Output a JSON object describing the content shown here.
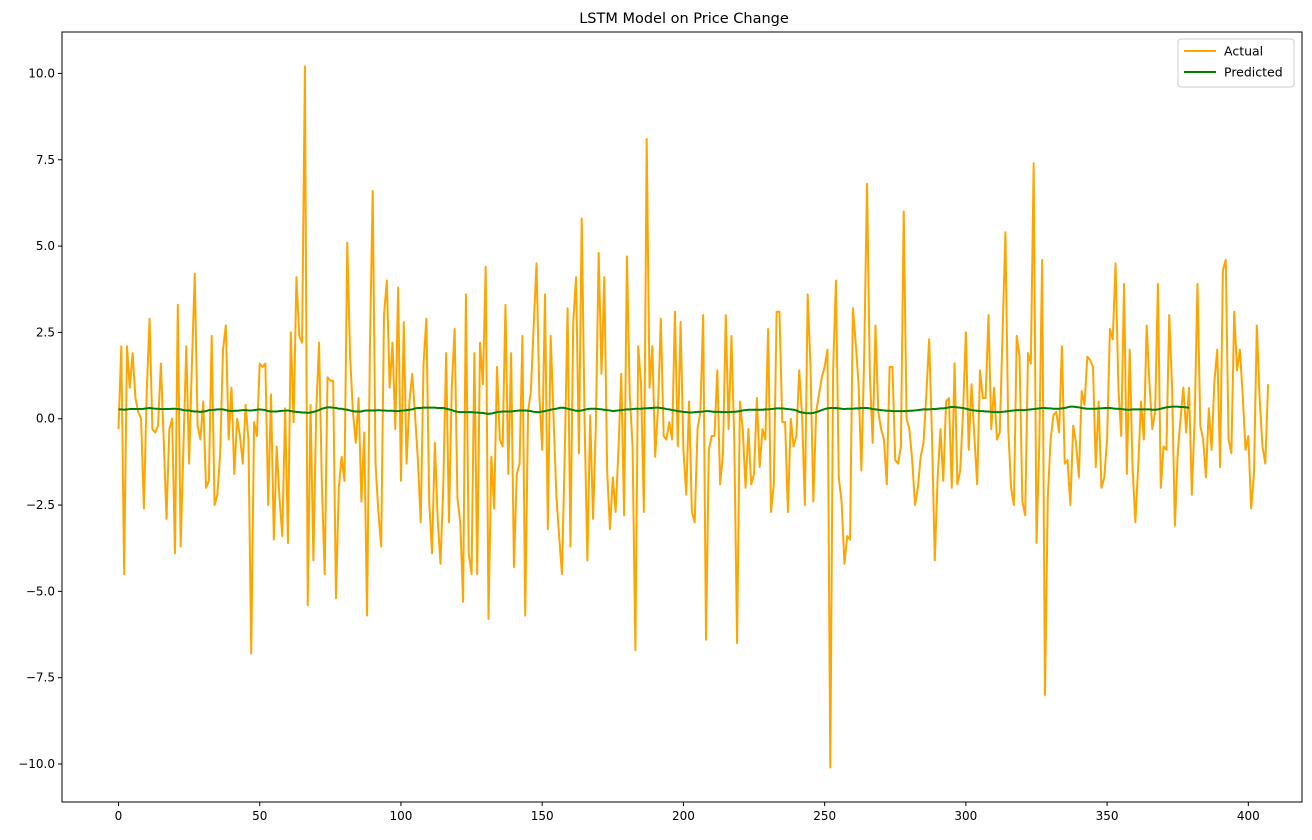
{
  "chart_data": {
    "type": "line",
    "title": "LSTM Model on Price Change",
    "xlabel": "",
    "ylabel": "",
    "xlim": [
      -20,
      419
    ],
    "ylim": [
      -11.1,
      11.2
    ],
    "xticks": [
      0,
      50,
      100,
      150,
      200,
      250,
      300,
      350,
      400
    ],
    "xtick_labels": [
      "0",
      "50",
      "100",
      "150",
      "200",
      "250",
      "300",
      "350",
      "400"
    ],
    "yticks": [
      10.0,
      7.5,
      5.0,
      2.5,
      0.0,
      -2.5,
      -5.0,
      -7.5,
      -10.0
    ],
    "ytick_labels": [
      "10.0",
      "7.5",
      "5.0",
      "2.5",
      "0.0",
      "−2.5",
      "−5.0",
      "−7.5",
      "−10.0"
    ],
    "grid": false,
    "legend_position": "top-right",
    "series": [
      {
        "name": "Actual",
        "color": "#FFA500",
        "values": [
          -0.3,
          2.1,
          -4.5,
          2.1,
          0.9,
          1.9,
          0.6,
          0.2,
          0.0,
          -2.6,
          0.8,
          2.9,
          -0.3,
          -0.4,
          -0.2,
          1.6,
          -0.6,
          -2.9,
          -0.3,
          0.0,
          -3.9,
          3.3,
          -3.7,
          -0.8,
          2.1,
          -1.3,
          1.6,
          4.2,
          -0.2,
          -0.6,
          0.5,
          -2.0,
          -1.8,
          2.4,
          -2.5,
          -2.2,
          -1.0,
          2.0,
          2.7,
          -0.6,
          0.9,
          -1.6,
          0.0,
          -0.5,
          -1.3,
          0.4,
          -0.6,
          -6.8,
          -0.1,
          -0.5,
          1.6,
          1.5,
          1.6,
          -2.5,
          0.7,
          -3.5,
          -0.8,
          -2.3,
          -3.4,
          0.3,
          -3.6,
          2.5,
          -0.1,
          4.1,
          2.4,
          2.2,
          10.2,
          -5.4,
          0.4,
          -4.1,
          0.2,
          2.2,
          -1.9,
          -4.5,
          1.2,
          1.1,
          1.1,
          -5.2,
          -2.0,
          -1.1,
          -1.8,
          5.1,
          1.8,
          0.2,
          -0.7,
          0.6,
          -2.4,
          -0.4,
          -5.7,
          2.0,
          6.6,
          -1.3,
          -2.7,
          -3.7,
          3.0,
          4.0,
          0.9,
          2.2,
          -0.3,
          3.8,
          -1.8,
          2.8,
          -1.3,
          0.5,
          1.3,
          0.1,
          -1.2,
          -3.0,
          1.6,
          2.9,
          -2.4,
          -3.9,
          -0.7,
          -2.9,
          -4.2,
          -1.9,
          1.9,
          -3.0,
          0.9,
          2.6,
          -2.3,
          -3.0,
          -5.3,
          3.6,
          -3.9,
          -4.5,
          1.9,
          -4.5,
          2.2,
          1.0,
          4.4,
          -5.8,
          -1.1,
          -2.6,
          1.5,
          -0.6,
          -0.8,
          3.3,
          -1.6,
          1.9,
          -4.3,
          -1.6,
          -1.3,
          2.4,
          -5.7,
          0.2,
          0.8,
          2.7,
          4.5,
          0.7,
          -0.9,
          3.6,
          -3.2,
          2.4,
          0.1,
          -2.2,
          -3.4,
          -4.5,
          -1.0,
          3.2,
          -3.7,
          2.8,
          4.1,
          -1.0,
          5.8,
          0.0,
          -4.1,
          0.1,
          -2.9,
          -0.2,
          4.8,
          1.3,
          4.1,
          -1.5,
          -3.2,
          -1.7,
          -2.7,
          -0.9,
          1.3,
          -2.8,
          4.7,
          0.7,
          -0.8,
          -6.7,
          2.1,
          1.0,
          -2.7,
          8.1,
          0.9,
          2.1,
          -1.1,
          0.3,
          2.9,
          -0.5,
          -0.6,
          -0.1,
          -0.6,
          3.1,
          -0.8,
          2.8,
          -0.9,
          -2.2,
          0.5,
          -2.7,
          -3.0,
          -0.3,
          0.2,
          3.0,
          -6.4,
          -0.9,
          -0.5,
          -0.5,
          1.4,
          -1.9,
          -1.0,
          3.0,
          -0.3,
          2.4,
          -0.6,
          -6.5,
          0.5,
          -0.3,
          -2.0,
          -0.3,
          -1.9,
          -1.6,
          0.6,
          -1.4,
          -0.3,
          -0.6,
          2.6,
          -2.7,
          -1.9,
          3.1,
          3.1,
          -0.1,
          -0.1,
          -2.7,
          0.0,
          -0.8,
          -0.5,
          1.4,
          0.1,
          -2.5,
          3.6,
          1.5,
          -2.4,
          0.2,
          0.7,
          1.2,
          1.5,
          2.0,
          -10.1,
          1.4,
          4.0,
          -1.7,
          -2.4,
          -4.2,
          -3.4,
          -3.5,
          3.2,
          2.2,
          1.0,
          -1.5,
          1.8,
          6.8,
          1.3,
          -0.7,
          2.7,
          0.2,
          -0.3,
          -0.6,
          -1.9,
          1.5,
          1.5,
          -1.2,
          -1.3,
          -0.8,
          6.0,
          0.0,
          -0.3,
          -1.2,
          -2.5,
          -2.0,
          -1.1,
          -0.7,
          0.7,
          2.3,
          -0.5,
          -4.1,
          -1.7,
          -0.3,
          -1.8,
          0.5,
          0.6,
          -2.0,
          1.6,
          -1.9,
          -1.5,
          0.2,
          2.5,
          -0.9,
          1.0,
          -0.5,
          -1.9,
          1.4,
          0.6,
          0.6,
          3.0,
          -0.3,
          0.9,
          -0.6,
          -0.4,
          2.5,
          5.4,
          -0.3,
          -2.0,
          -2.5,
          2.4,
          1.8,
          -2.4,
          -2.8,
          1.9,
          1.6,
          7.4,
          -3.6,
          -0.7,
          4.6,
          -8.0,
          -2.3,
          -0.6,
          0.1,
          0.2,
          -0.4,
          2.1,
          -1.3,
          -1.2,
          -2.5,
          -0.2,
          -0.7,
          -1.7,
          0.8,
          0.4,
          1.8,
          1.7,
          1.5,
          -1.4,
          0.5,
          -2.0,
          -1.7,
          -0.6,
          2.6,
          2.3,
          4.5,
          0.9,
          -0.5,
          3.9,
          -1.6,
          2.0,
          -1.4,
          -3.0,
          -1.4,
          0.5,
          -0.6,
          2.7,
          1.0,
          -0.3,
          0.2,
          3.9,
          -2.0,
          -0.8,
          -0.9,
          3.0,
          0.9,
          -3.1,
          -1.0,
          0.0,
          0.9,
          -0.4,
          0.9,
          -2.2,
          0.0,
          3.9,
          -0.2,
          -0.6,
          -1.7,
          0.3,
          -0.9,
          1.1,
          2.0,
          -1.4,
          4.3,
          4.6,
          -0.6,
          -1.0,
          3.1,
          1.4,
          2.0,
          0.7,
          -0.9,
          -0.5,
          -2.6,
          -1.6,
          2.7,
          0.6,
          -0.8,
          -1.3,
          1.0
        ]
      },
      {
        "name": "Predicted",
        "color": "#008000",
        "values": [
          0.27,
          0.27,
          0.26,
          0.27,
          0.28,
          0.28,
          0.28,
          0.28,
          0.28,
          0.29,
          0.3,
          0.31,
          0.3,
          0.29,
          0.29,
          0.28,
          0.28,
          0.28,
          0.28,
          0.29,
          0.29,
          0.28,
          0.27,
          0.25,
          0.24,
          0.24,
          0.22,
          0.21,
          0.21,
          0.2,
          0.21,
          0.22,
          0.25,
          0.25,
          0.26,
          0.27,
          0.27,
          0.27,
          0.25,
          0.23,
          0.22,
          0.23,
          0.23,
          0.24,
          0.25,
          0.25,
          0.24,
          0.24,
          0.25,
          0.26,
          0.27,
          0.26,
          0.25,
          0.22,
          0.21,
          0.21,
          0.21,
          0.22,
          0.23,
          0.23,
          0.24,
          0.22,
          0.21,
          0.2,
          0.19,
          0.18,
          0.18,
          0.17,
          0.18,
          0.2,
          0.22,
          0.25,
          0.29,
          0.31,
          0.33,
          0.33,
          0.32,
          0.31,
          0.29,
          0.29,
          0.27,
          0.26,
          0.24,
          0.22,
          0.21,
          0.21,
          0.21,
          0.23,
          0.24,
          0.24,
          0.24,
          0.24,
          0.25,
          0.24,
          0.24,
          0.23,
          0.23,
          0.23,
          0.22,
          0.22,
          0.23,
          0.24,
          0.25,
          0.26,
          0.27,
          0.3,
          0.31,
          0.31,
          0.32,
          0.32,
          0.32,
          0.32,
          0.32,
          0.31,
          0.31,
          0.31,
          0.29,
          0.27,
          0.25,
          0.22,
          0.2,
          0.19,
          0.19,
          0.19,
          0.19,
          0.19,
          0.18,
          0.18,
          0.17,
          0.17,
          0.15,
          0.14,
          0.15,
          0.17,
          0.19,
          0.2,
          0.21,
          0.21,
          0.21,
          0.21,
          0.22,
          0.23,
          0.24,
          0.24,
          0.24,
          0.23,
          0.22,
          0.2,
          0.19,
          0.19,
          0.21,
          0.22,
          0.24,
          0.26,
          0.28,
          0.29,
          0.31,
          0.32,
          0.31,
          0.29,
          0.27,
          0.25,
          0.23,
          0.23,
          0.24,
          0.26,
          0.28,
          0.29,
          0.29,
          0.29,
          0.28,
          0.27,
          0.26,
          0.25,
          0.24,
          0.22,
          0.23,
          0.24,
          0.25,
          0.26,
          0.27,
          0.27,
          0.28,
          0.29,
          0.29,
          0.29,
          0.3,
          0.3,
          0.31,
          0.31,
          0.32,
          0.32,
          0.31,
          0.3,
          0.28,
          0.27,
          0.25,
          0.24,
          0.22,
          0.21,
          0.2,
          0.19,
          0.18,
          0.18,
          0.19,
          0.2,
          0.2,
          0.21,
          0.22,
          0.22,
          0.21,
          0.2,
          0.2,
          0.2,
          0.19,
          0.19,
          0.19,
          0.2,
          0.2,
          0.21,
          0.22,
          0.24,
          0.25,
          0.26,
          0.26,
          0.26,
          0.26,
          0.26,
          0.26,
          0.27,
          0.27,
          0.28,
          0.29,
          0.3,
          0.3,
          0.3,
          0.29,
          0.28,
          0.27,
          0.26,
          0.24,
          0.2,
          0.18,
          0.17,
          0.16,
          0.16,
          0.17,
          0.19,
          0.22,
          0.25,
          0.28,
          0.3,
          0.31,
          0.31,
          0.31,
          0.3,
          0.29,
          0.28,
          0.29,
          0.29,
          0.29,
          0.3,
          0.3,
          0.31,
          0.31,
          0.31,
          0.3,
          0.28,
          0.27,
          0.26,
          0.25,
          0.24,
          0.23,
          0.23,
          0.22,
          0.22,
          0.22,
          0.22,
          0.22,
          0.22,
          0.23,
          0.23,
          0.24,
          0.25,
          0.26,
          0.27,
          0.27,
          0.27,
          0.28,
          0.28,
          0.29,
          0.3,
          0.3,
          0.31,
          0.33,
          0.34,
          0.34,
          0.33,
          0.32,
          0.31,
          0.29,
          0.27,
          0.25,
          0.24,
          0.23,
          0.22,
          0.22,
          0.21,
          0.21,
          0.2,
          0.19,
          0.19,
          0.19,
          0.2,
          0.21,
          0.22,
          0.23,
          0.24,
          0.25,
          0.25,
          0.25,
          0.25,
          0.26,
          0.27,
          0.28,
          0.29,
          0.3,
          0.31,
          0.31,
          0.3,
          0.3,
          0.29,
          0.29,
          0.29,
          0.3,
          0.31,
          0.33,
          0.35,
          0.35,
          0.34,
          0.33,
          0.31,
          0.3,
          0.29,
          0.29,
          0.29,
          0.29,
          0.3,
          0.3,
          0.31,
          0.31,
          0.31,
          0.3,
          0.29,
          0.29,
          0.28,
          0.27,
          0.26,
          0.26,
          0.27,
          0.27,
          0.27,
          0.27,
          0.27,
          0.27,
          0.27,
          0.26,
          0.26,
          0.27,
          0.29,
          0.31,
          0.33,
          0.34,
          0.35,
          0.35,
          0.35,
          0.34,
          0.34,
          0.33,
          0.32
        ]
      }
    ]
  }
}
